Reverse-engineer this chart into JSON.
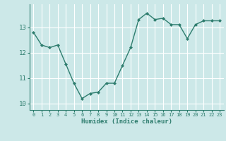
{
  "x": [
    0,
    1,
    2,
    3,
    4,
    5,
    6,
    7,
    8,
    9,
    10,
    11,
    12,
    13,
    14,
    15,
    16,
    17,
    18,
    19,
    20,
    21,
    22,
    23
  ],
  "y": [
    12.8,
    12.3,
    12.2,
    12.3,
    11.55,
    10.8,
    10.2,
    10.4,
    10.45,
    10.8,
    10.8,
    11.5,
    12.2,
    13.3,
    13.55,
    13.3,
    13.35,
    13.1,
    13.1,
    12.55,
    13.1,
    13.25,
    13.25,
    13.25
  ],
  "xlabel": "Humidex (Indice chaleur)",
  "line_color": "#2e7d6e",
  "bg_color": "#cce8e8",
  "grid_color": "#ffffff",
  "tick_color": "#2e7d6e",
  "label_color": "#2e7d6e",
  "spine_color": "#2e7d6e",
  "ylim": [
    9.75,
    13.9
  ],
  "yticks": [
    10,
    11,
    12,
    13
  ],
  "xlim": [
    -0.5,
    23.5
  ]
}
